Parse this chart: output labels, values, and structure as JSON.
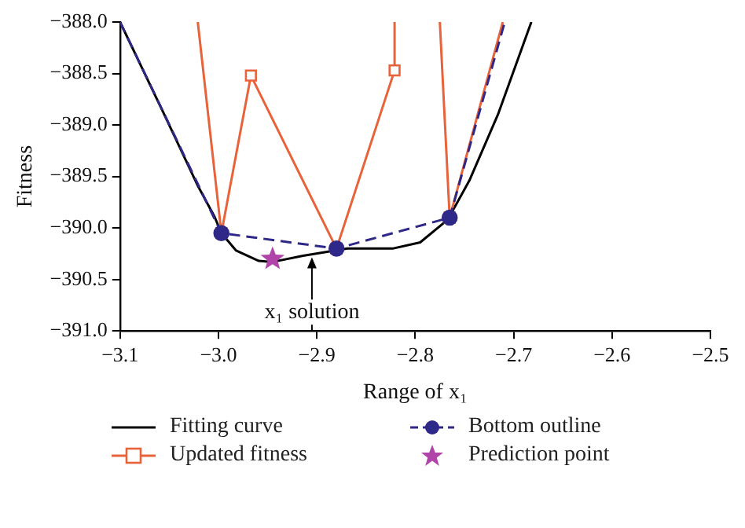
{
  "chart_data": {
    "type": "line",
    "xlabel": "Range of x₁",
    "ylabel": "Fitness",
    "xlim": [
      -3.1,
      -2.5
    ],
    "ylim": [
      -391,
      -388
    ],
    "xticks": [
      {
        "value": -3.1,
        "label": "−3.1"
      },
      {
        "value": -3.0,
        "label": "−3.0"
      },
      {
        "value": -2.9,
        "label": "−2.9"
      },
      {
        "value": -2.8,
        "label": "−2.8"
      },
      {
        "value": -2.7,
        "label": "−2.7"
      },
      {
        "value": -2.6,
        "label": "−2.6"
      },
      {
        "value": -2.5,
        "label": "−2.5"
      }
    ],
    "yticks": [
      {
        "value": -391,
        "label": "−391.0"
      },
      {
        "value": -390.5,
        "label": "−390.5"
      },
      {
        "value": -390,
        "label": "−390.0"
      },
      {
        "value": -389.5,
        "label": "−389.5"
      },
      {
        "value": -389,
        "label": "−389.0"
      },
      {
        "value": -388.5,
        "label": "−388.5"
      },
      {
        "value": -388,
        "label": "−388.0"
      }
    ],
    "grid": false,
    "legend": "bottom",
    "annotations": [
      {
        "text": "x₁ solution",
        "x": -2.905,
        "y": -390.27
      }
    ],
    "series": [
      {
        "name": "Fitting curve",
        "type": "line",
        "color": "#000000",
        "marker": "none",
        "line_style": "solid",
        "x": [
          -3.1,
          -3.055,
          -3.021,
          -3.004,
          -2.997,
          -2.982,
          -2.959,
          -2.945,
          -2.914,
          -2.869,
          -2.823,
          -2.795,
          -2.767,
          -2.745,
          -2.716,
          -2.682
        ],
        "values": [
          -388.0,
          -388.9,
          -389.59,
          -389.89,
          -390.05,
          -390.22,
          -390.32,
          -390.33,
          -390.27,
          -390.2,
          -390.2,
          -390.14,
          -389.92,
          -389.54,
          -388.9,
          -388.0
        ]
      },
      {
        "name": "Updated fitness",
        "type": "line",
        "color": "#e8623a",
        "marker": "square",
        "line_style": "solid",
        "x": [
          -3.021,
          -2.997,
          -2.967,
          -2.88,
          -2.821,
          -2.821,
          -2.8,
          -2.775,
          -2.765,
          -2.711
        ],
        "values": [
          -388.0,
          -390.05,
          -388.52,
          -390.2,
          -388.47,
          -388.0,
          null,
          -388.0,
          -389.9,
          -388.0
        ]
      },
      {
        "name": "Bottom outline",
        "type": "line",
        "color": "#2e2888",
        "marker": "circle",
        "line_style": "dashed",
        "x": [
          -3.1,
          -2.997,
          -2.88,
          -2.765,
          -2.709
        ],
        "values": [
          -388.0,
          -390.05,
          -390.2,
          -389.9,
          -388.0
        ]
      },
      {
        "name": "Prediction point",
        "type": "scatter",
        "color": "#b044a8",
        "marker": "star",
        "x": [
          -2.945
        ],
        "values": [
          -390.3
        ]
      }
    ]
  }
}
